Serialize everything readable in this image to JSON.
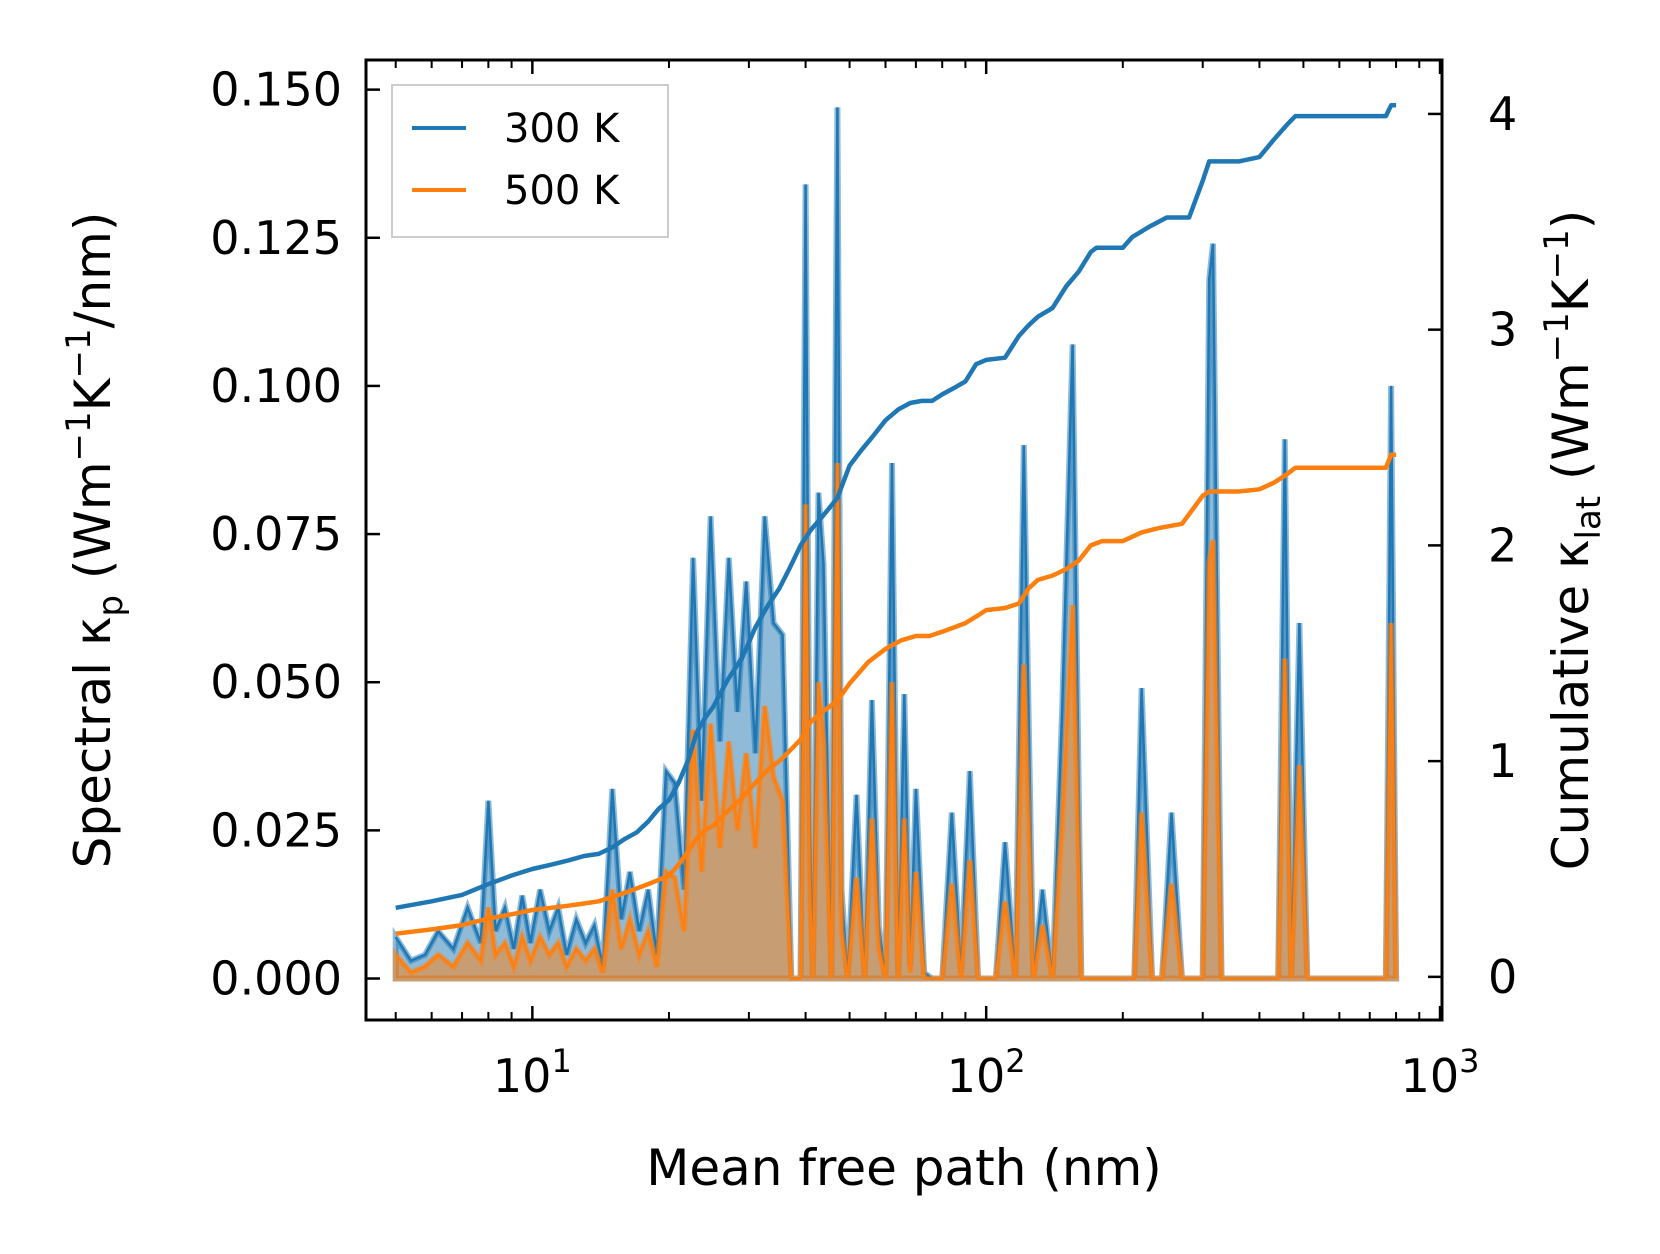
{
  "chart_data": {
    "type": "line",
    "xscale": "log",
    "xlabel": "Mean free path (nm)",
    "xlim": [
      4.3,
      1010
    ],
    "xticks": [
      {
        "value": 10,
        "base": "10",
        "exp": "1"
      },
      {
        "value": 100,
        "base": "10",
        "exp": "2"
      },
      {
        "value": 1000,
        "base": "10",
        "exp": "3"
      }
    ],
    "ylabel_left": {
      "pre": "Spectral κ",
      "sub": "p",
      "post": " (Wm",
      "sup1": "−1",
      "mid": "K",
      "sup2": "−1",
      "end": "/nm)"
    },
    "ylim_left": [
      -0.007,
      0.155
    ],
    "yticks_left": [
      "0.000",
      "0.025",
      "0.050",
      "0.075",
      "0.100",
      "0.125",
      "0.150"
    ],
    "ylabel_right": {
      "pre": "Cumulative κ",
      "sub": "lat",
      "post": " (Wm",
      "sup1": "−1",
      "mid": "K",
      "sup2": "−1",
      "end": ")"
    },
    "ylim_right": [
      -0.2,
      4.25
    ],
    "yticks_right": [
      "0",
      "1",
      "2",
      "3",
      "4"
    ],
    "colors": {
      "300K": "#1f77b4",
      "500K": "#ff7f0e"
    },
    "legend": {
      "placement": "upper-left",
      "entries": [
        "300 K",
        "500 K"
      ]
    },
    "spectral_x": [
      5,
      5.4,
      5.8,
      6.2,
      6.7,
      7.2,
      7.7,
      8,
      8.3,
      8.7,
      9.1,
      9.5,
      9.9,
      10.4,
      10.9,
      11.4,
      11.9,
      12.5,
      13.1,
      13.7,
      14.3,
      15,
      15.7,
      16.4,
      17.2,
      18,
      18.8,
      19.7,
      20.6,
      21.6,
      22.6,
      23.6,
      24.7,
      25.9,
      27.1,
      28.3,
      29.6,
      31,
      32.5,
      34,
      35.6,
      37.2,
      39,
      40,
      40.8,
      41.5,
      42.7,
      43.8,
      45.6,
      47,
      48,
      49.5,
      51.8,
      54,
      56,
      58,
      60,
      62,
      64,
      66,
      68,
      70,
      73,
      76,
      80,
      84,
      88,
      92,
      96,
      100,
      105,
      110,
      116,
      121,
      127,
      133,
      140,
      147,
      155,
      162,
      170,
      180,
      190,
      200,
      212,
      220,
      232,
      244,
      256,
      270,
      285,
      300,
      310,
      316,
      330,
      350,
      370,
      390,
      410,
      425,
      440,
      455,
      470,
      490,
      510,
      560,
      620,
      700,
      760,
      780,
      800
    ],
    "spectral_300K": [
      0.007,
      0.003,
      0.004,
      0.008,
      0.005,
      0.012,
      0.006,
      0.03,
      0.008,
      0.012,
      0.005,
      0.014,
      0.006,
      0.015,
      0.008,
      0.012,
      0.004,
      0.01,
      0.006,
      0.009,
      0.002,
      0.032,
      0.01,
      0.018,
      0.008,
      0.015,
      0.004,
      0.035,
      0.033,
      0.015,
      0.071,
      0.03,
      0.078,
      0.04,
      0.071,
      0.045,
      0.067,
      0.038,
      0.078,
      0.06,
      0.058,
      0.0,
      0.0,
      0.134,
      0.03,
      0.0,
      0.082,
      0.07,
      0.0,
      0.147,
      0.015,
      0.0,
      0.031,
      0.0,
      0.047,
      0.009,
      0.0,
      0.087,
      0.0,
      0.048,
      0.002,
      0.032,
      0.001,
      0.0,
      0.0,
      0.028,
      0.001,
      0.035,
      0.0,
      0.0,
      0.0,
      0.023,
      0.0,
      0.09,
      0.0,
      0.015,
      0.0,
      0.045,
      0.107,
      0.0,
      0.0,
      0.0,
      0.0,
      0.0,
      0.0,
      0.049,
      0.0,
      0.0,
      0.028,
      0.0,
      0.0,
      0.0,
      0.118,
      0.124,
      0.0,
      0.0,
      0.0,
      0.0,
      0.0,
      0.0,
      0.0,
      0.091,
      0.0,
      0.06,
      0.0,
      0.0,
      0.0,
      0.0,
      0.0,
      0.1,
      0.0
    ],
    "spectral_500K": [
      0.004,
      0.001,
      0.002,
      0.004,
      0.002,
      0.006,
      0.003,
      0.012,
      0.004,
      0.006,
      0.002,
      0.007,
      0.003,
      0.007,
      0.004,
      0.006,
      0.002,
      0.005,
      0.003,
      0.005,
      0.001,
      0.015,
      0.005,
      0.01,
      0.004,
      0.008,
      0.002,
      0.018,
      0.017,
      0.008,
      0.042,
      0.018,
      0.043,
      0.022,
      0.04,
      0.025,
      0.038,
      0.022,
      0.046,
      0.034,
      0.03,
      0.0,
      0.0,
      0.08,
      0.017,
      0.0,
      0.05,
      0.04,
      0.0,
      0.087,
      0.008,
      0.0,
      0.017,
      0.0,
      0.027,
      0.005,
      0.0,
      0.05,
      0.0,
      0.027,
      0.001,
      0.018,
      0.0,
      0.0,
      0.0,
      0.016,
      0.0,
      0.02,
      0.0,
      0.0,
      0.0,
      0.013,
      0.0,
      0.053,
      0.0,
      0.009,
      0.0,
      0.026,
      0.063,
      0.0,
      0.0,
      0.0,
      0.0,
      0.0,
      0.0,
      0.028,
      0.0,
      0.0,
      0.016,
      0.0,
      0.0,
      0.0,
      0.07,
      0.074,
      0.0,
      0.0,
      0.0,
      0.0,
      0.0,
      0.0,
      0.0,
      0.054,
      0.0,
      0.036,
      0.0,
      0.0,
      0.0,
      0.0,
      0.0,
      0.06,
      0.0
    ],
    "cumulative_300K": {
      "x": [
        5,
        6,
        7,
        8,
        9,
        10,
        11,
        12,
        13,
        14,
        15,
        16,
        17,
        18,
        19,
        20,
        21,
        22,
        23,
        24,
        25,
        27,
        29,
        31,
        33,
        35,
        37,
        39,
        41,
        43,
        45,
        47,
        50,
        53,
        56,
        60,
        64,
        68,
        72,
        76,
        80,
        85,
        90,
        95,
        100,
        110,
        118,
        124,
        130,
        140,
        150,
        160,
        170,
        175,
        180,
        200,
        210,
        230,
        250,
        280,
        300,
        310,
        330,
        360,
        400,
        430,
        460,
        480,
        500,
        550,
        700,
        760,
        780,
        800
      ],
      "y": [
        0.32,
        0.35,
        0.38,
        0.43,
        0.47,
        0.5,
        0.52,
        0.54,
        0.56,
        0.57,
        0.6,
        0.64,
        0.67,
        0.72,
        0.78,
        0.82,
        0.9,
        1.0,
        1.13,
        1.2,
        1.25,
        1.38,
        1.48,
        1.62,
        1.72,
        1.8,
        1.9,
        2.0,
        2.07,
        2.12,
        2.17,
        2.22,
        2.37,
        2.44,
        2.5,
        2.58,
        2.63,
        2.66,
        2.67,
        2.67,
        2.7,
        2.73,
        2.76,
        2.84,
        2.86,
        2.87,
        2.97,
        3.02,
        3.06,
        3.1,
        3.2,
        3.27,
        3.36,
        3.38,
        3.38,
        3.38,
        3.43,
        3.48,
        3.52,
        3.52,
        3.69,
        3.78,
        3.78,
        3.78,
        3.8,
        3.88,
        3.95,
        3.99,
        3.99,
        3.99,
        3.99,
        3.99,
        4.04,
        4.04
      ]
    },
    "cumulative_500K": {
      "x": [
        5,
        6,
        7,
        8,
        9,
        10,
        11,
        12,
        13,
        14,
        15,
        16,
        17,
        18,
        19,
        20,
        21,
        22,
        23,
        24,
        25,
        27,
        29,
        31,
        33,
        35,
        37,
        39,
        41,
        43,
        45,
        47,
        50,
        55,
        60,
        65,
        70,
        75,
        80,
        85,
        90,
        95,
        100,
        110,
        118,
        124,
        130,
        140,
        150,
        160,
        170,
        180,
        200,
        220,
        240,
        270,
        300,
        310,
        330,
        360,
        400,
        430,
        460,
        480,
        500,
        550,
        700,
        760,
        780,
        800
      ],
      "y": [
        0.2,
        0.22,
        0.24,
        0.27,
        0.29,
        0.31,
        0.32,
        0.33,
        0.34,
        0.35,
        0.37,
        0.39,
        0.41,
        0.43,
        0.45,
        0.47,
        0.52,
        0.58,
        0.64,
        0.68,
        0.7,
        0.77,
        0.83,
        0.9,
        0.96,
        1.0,
        1.05,
        1.1,
        1.18,
        1.22,
        1.25,
        1.28,
        1.36,
        1.46,
        1.52,
        1.56,
        1.58,
        1.58,
        1.6,
        1.62,
        1.64,
        1.67,
        1.7,
        1.71,
        1.73,
        1.8,
        1.84,
        1.86,
        1.89,
        1.93,
        2.0,
        2.02,
        2.02,
        2.06,
        2.08,
        2.1,
        2.23,
        2.25,
        2.25,
        2.25,
        2.26,
        2.29,
        2.33,
        2.36,
        2.36,
        2.36,
        2.36,
        2.36,
        2.42,
        2.42
      ]
    }
  }
}
